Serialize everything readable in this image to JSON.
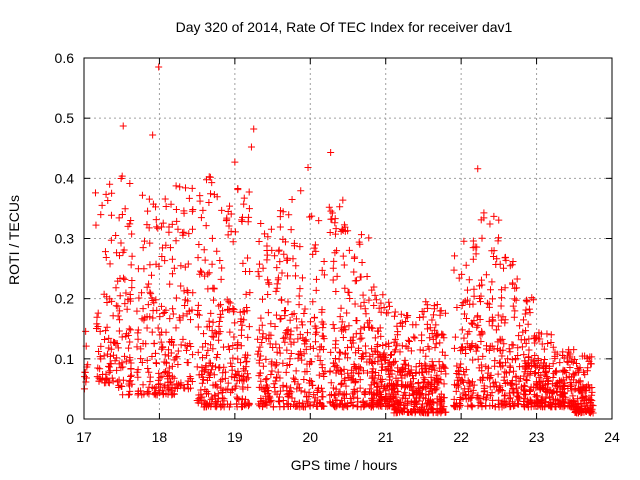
{
  "chart_data": {
    "type": "scatter",
    "title": "Day 320 of 2014, Rate Of TEC Index for receiver dav1",
    "xlabel": "GPS time / hours",
    "ylabel": "ROTI / TECUs",
    "xlim": [
      17,
      24
    ],
    "ylim": [
      0,
      0.6
    ],
    "xticks": [
      17,
      18,
      19,
      20,
      21,
      22,
      23,
      24
    ],
    "yticks": [
      0,
      0.1,
      0.2,
      0.3,
      0.4,
      0.5,
      0.6
    ],
    "ytick_labels": [
      "0",
      "0.1",
      "0.2",
      "0.3",
      "0.4",
      "0.5",
      "0.6"
    ],
    "grid": true,
    "marker": "+",
    "color": "#ff0000",
    "notable_points": [
      {
        "x": 17.99,
        "y": 0.585
      },
      {
        "x": 17.52,
        "y": 0.487
      },
      {
        "x": 17.91,
        "y": 0.472
      },
      {
        "x": 19.25,
        "y": 0.482
      },
      {
        "x": 19.22,
        "y": 0.452
      },
      {
        "x": 20.27,
        "y": 0.443
      },
      {
        "x": 22.22,
        "y": 0.416
      },
      {
        "x": 19.0,
        "y": 0.427
      },
      {
        "x": 19.97,
        "y": 0.418
      }
    ],
    "clusters": [
      {
        "x_start": 17.0,
        "x_end": 17.05,
        "y_min": 0.05,
        "y_max": 0.17,
        "n": 10
      },
      {
        "x_start": 17.15,
        "x_end": 17.45,
        "y_min": 0.06,
        "y_max": 0.4,
        "n": 80
      },
      {
        "x_start": 17.45,
        "x_end": 17.65,
        "y_min": 0.04,
        "y_max": 0.43,
        "n": 70
      },
      {
        "x_start": 17.7,
        "x_end": 18.0,
        "y_min": 0.04,
        "y_max": 0.39,
        "n": 90
      },
      {
        "x_start": 18.0,
        "x_end": 18.2,
        "y_min": 0.04,
        "y_max": 0.37,
        "n": 80
      },
      {
        "x_start": 18.2,
        "x_end": 18.45,
        "y_min": 0.05,
        "y_max": 0.39,
        "n": 70
      },
      {
        "x_start": 18.5,
        "x_end": 18.85,
        "y_min": 0.02,
        "y_max": 0.41,
        "n": 150
      },
      {
        "x_start": 18.85,
        "x_end": 19.2,
        "y_min": 0.02,
        "y_max": 0.39,
        "n": 130
      },
      {
        "x_start": 19.3,
        "x_end": 19.6,
        "y_min": 0.02,
        "y_max": 0.33,
        "n": 120
      },
      {
        "x_start": 19.6,
        "x_end": 19.9,
        "y_min": 0.02,
        "y_max": 0.38,
        "n": 110
      },
      {
        "x_start": 19.9,
        "x_end": 20.2,
        "y_min": 0.02,
        "y_max": 0.34,
        "n": 100
      },
      {
        "x_start": 20.25,
        "x_end": 20.5,
        "y_min": 0.02,
        "y_max": 0.39,
        "n": 110
      },
      {
        "x_start": 20.5,
        "x_end": 20.8,
        "y_min": 0.02,
        "y_max": 0.31,
        "n": 110
      },
      {
        "x_start": 20.8,
        "x_end": 21.1,
        "y_min": 0.02,
        "y_max": 0.22,
        "n": 160
      },
      {
        "x_start": 21.1,
        "x_end": 21.4,
        "y_min": 0.01,
        "y_max": 0.18,
        "n": 150
      },
      {
        "x_start": 21.4,
        "x_end": 21.8,
        "y_min": 0.01,
        "y_max": 0.2,
        "n": 200
      },
      {
        "x_start": 21.9,
        "x_end": 22.2,
        "y_min": 0.02,
        "y_max": 0.31,
        "n": 110
      },
      {
        "x_start": 22.2,
        "x_end": 22.5,
        "y_min": 0.02,
        "y_max": 0.35,
        "n": 110
      },
      {
        "x_start": 22.5,
        "x_end": 22.75,
        "y_min": 0.02,
        "y_max": 0.27,
        "n": 100
      },
      {
        "x_start": 22.75,
        "x_end": 23.0,
        "y_min": 0.02,
        "y_max": 0.22,
        "n": 110
      },
      {
        "x_start": 23.0,
        "x_end": 23.25,
        "y_min": 0.02,
        "y_max": 0.15,
        "n": 110
      },
      {
        "x_start": 23.25,
        "x_end": 23.5,
        "y_min": 0.02,
        "y_max": 0.12,
        "n": 100
      },
      {
        "x_start": 23.5,
        "x_end": 23.75,
        "y_min": 0.01,
        "y_max": 0.11,
        "n": 120
      }
    ]
  }
}
